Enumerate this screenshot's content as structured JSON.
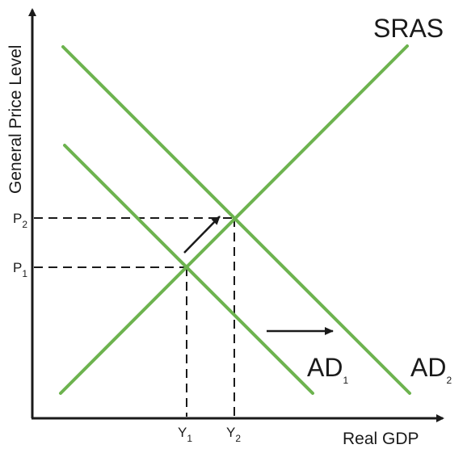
{
  "axes": {
    "x_label": "Real GDP",
    "y_label": "General Price Level"
  },
  "curves": {
    "sras": "SRAS",
    "ad1": {
      "base": "AD",
      "sub": "1"
    },
    "ad2": {
      "base": "AD",
      "sub": "2"
    }
  },
  "ticks": {
    "p1": {
      "base": "P",
      "sub": "1"
    },
    "p2": {
      "base": "P",
      "sub": "2"
    },
    "y1": {
      "base": "Y",
      "sub": "1"
    },
    "y2": {
      "base": "Y",
      "sub": "2"
    }
  },
  "colors": {
    "curve": "#6db34f",
    "axis": "#1a1a1a",
    "dashed": "#1a1a1a",
    "arrow": "#1a1a1a"
  }
}
